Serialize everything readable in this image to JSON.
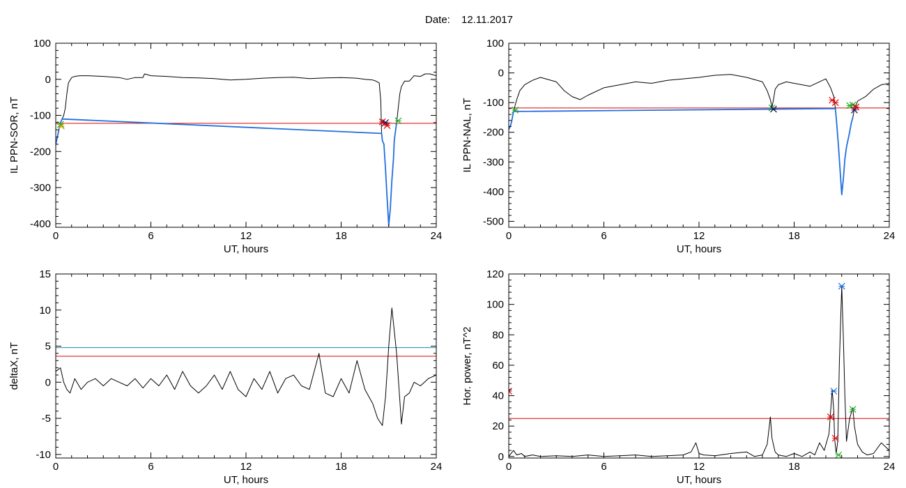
{
  "header": {
    "date_label": "Date:",
    "date_value": "12.11.2017"
  },
  "chart_data": [
    {
      "type": "line",
      "ylabel": "IL PPN-SOR, nT",
      "xlabel": "UT, hours",
      "xlim": [
        0,
        24
      ],
      "ylim": [
        -410,
        100
      ],
      "xticks": [
        "0",
        "6",
        "12",
        "18",
        "24"
      ],
      "xtick_values": [
        0,
        6,
        12,
        18,
        24
      ],
      "yticks": [
        "100",
        "0",
        "-100",
        "-200",
        "-300",
        "-400"
      ],
      "ytick_values": [
        100,
        0,
        -100,
        -200,
        -300,
        -400
      ],
      "thresholds": [
        {
          "value": -122,
          "color": "#e00000"
        }
      ],
      "series": [
        {
          "color": "#000000",
          "x": [
            0,
            0.1,
            0.2,
            0.3,
            0.4,
            0.5,
            0.6,
            0.7,
            0.8,
            1.0,
            1.2,
            1.5,
            2,
            3,
            4,
            4.5,
            5,
            5.5,
            5.6,
            6,
            7,
            8,
            9,
            10,
            11,
            12,
            13,
            14,
            15,
            16,
            17,
            18,
            19,
            19.5,
            20,
            20.2,
            20.4,
            20.5,
            20.55,
            20.6,
            20.7,
            20.8,
            20.9,
            21.0,
            21.1,
            21.2,
            21.3,
            21.35,
            21.5,
            21.6,
            21.7,
            21.8,
            22,
            22.3,
            22.6,
            23,
            23.3,
            23.6,
            24
          ],
          "y": [
            -180,
            -160,
            -140,
            -120,
            -110,
            -100,
            -80,
            -40,
            -10,
            5,
            8,
            10,
            10,
            8,
            5,
            0,
            5,
            5,
            15,
            10,
            8,
            5,
            4,
            2,
            -2,
            0,
            3,
            5,
            6,
            2,
            4,
            5,
            3,
            0,
            -2,
            -5,
            -10,
            -60,
            -150,
            -170,
            -180,
            -250,
            -330,
            -405,
            -360,
            -280,
            -220,
            -170,
            -120,
            -80,
            -40,
            -20,
            -5,
            -5,
            10,
            8,
            15,
            15,
            10
          ]
        },
        {
          "color": "#1f6fe0",
          "x": [
            0,
            0.1,
            0.2,
            0.3,
            0.4,
            20.55,
            20.6,
            20.7,
            20.8,
            20.9,
            21.0,
            21.1,
            21.2,
            21.3,
            21.35,
            21.5
          ],
          "y": [
            -180,
            -160,
            -140,
            -120,
            -110,
            -150,
            -170,
            -180,
            -250,
            -330,
            -405,
            -360,
            -280,
            -220,
            -170,
            -120
          ]
        }
      ],
      "markers": [
        {
          "x": 0.3,
          "y": -125,
          "color": "#20b020"
        },
        {
          "x": 0.35,
          "y": -130,
          "color": "#d0a000"
        },
        {
          "x": 20.6,
          "y": -118,
          "color": "#e00000"
        },
        {
          "x": 20.75,
          "y": -122,
          "color": "#e00000"
        },
        {
          "x": 20.8,
          "y": -120,
          "color": "#101060"
        },
        {
          "x": 20.9,
          "y": -128,
          "color": "#e00000"
        },
        {
          "x": 21.6,
          "y": -115,
          "color": "#20b020"
        }
      ]
    },
    {
      "type": "line",
      "ylabel": "IL PPN-NAL, nT",
      "xlabel": "UT, hours",
      "xlim": [
        0,
        24
      ],
      "ylim": [
        -520,
        100
      ],
      "xticks": [
        "0",
        "6",
        "12",
        "18",
        "24"
      ],
      "xtick_values": [
        0,
        6,
        12,
        18,
        24
      ],
      "yticks": [
        "100",
        "0",
        "-100",
        "-200",
        "-300",
        "-400",
        "-500"
      ],
      "ytick_values": [
        100,
        0,
        -100,
        -200,
        -300,
        -400,
        -500
      ],
      "thresholds": [
        {
          "value": -118,
          "color": "#e00000"
        }
      ],
      "series": [
        {
          "color": "#000000",
          "x": [
            0,
            0.1,
            0.2,
            0.3,
            0.5,
            0.7,
            1.0,
            1.5,
            2,
            3,
            3.5,
            4,
            4.5,
            5,
            6,
            7,
            8,
            9,
            10,
            11,
            12,
            13,
            14,
            15,
            16,
            16.3,
            16.5,
            16.6,
            16.7,
            16.8,
            17,
            17.5,
            18,
            19,
            20,
            20.3,
            20.5,
            20.6,
            20.7,
            20.8,
            20.9,
            21.0,
            21.1,
            21.2,
            21.3,
            21.5,
            21.6,
            21.7,
            21.8,
            21.9,
            22,
            22.5,
            23,
            23.5,
            24
          ],
          "y": [
            -190,
            -180,
            -160,
            -130,
            -90,
            -60,
            -40,
            -25,
            -15,
            -30,
            -60,
            -80,
            -90,
            -75,
            -50,
            -40,
            -30,
            -35,
            -25,
            -20,
            -15,
            -8,
            -5,
            -15,
            -30,
            -60,
            -90,
            -115,
            -90,
            -55,
            -40,
            -30,
            -35,
            -45,
            -20,
            -50,
            -80,
            -120,
            -180,
            -250,
            -330,
            -410,
            -360,
            -290,
            -250,
            -200,
            -170,
            -150,
            -120,
            -110,
            -95,
            -80,
            -55,
            -40,
            -35
          ]
        },
        {
          "color": "#1f6fe0",
          "x": [
            0,
            0.1,
            0.2,
            0.3,
            20.6,
            20.7,
            20.8,
            20.9,
            21.0,
            21.1,
            21.2,
            21.3,
            21.5,
            21.6,
            21.7
          ],
          "y": [
            -190,
            -180,
            -160,
            -130,
            -120,
            -180,
            -250,
            -330,
            -410,
            -360,
            -290,
            -250,
            -200,
            -170,
            -150
          ]
        }
      ],
      "markers": [
        {
          "x": 0.4,
          "y": -125,
          "color": "#20b020"
        },
        {
          "x": 16.6,
          "y": -118,
          "color": "#20b020"
        },
        {
          "x": 16.7,
          "y": -122,
          "color": "#101060"
        },
        {
          "x": 20.4,
          "y": -92,
          "color": "#e00000"
        },
        {
          "x": 20.6,
          "y": -100,
          "color": "#e00000"
        },
        {
          "x": 21.5,
          "y": -110,
          "color": "#20b020"
        },
        {
          "x": 21.7,
          "y": -108,
          "color": "#20b020"
        },
        {
          "x": 21.8,
          "y": -125,
          "color": "#101060"
        },
        {
          "x": 21.9,
          "y": -115,
          "color": "#e00000"
        }
      ]
    },
    {
      "type": "line",
      "ylabel": "deltaX, nT",
      "xlabel": "UT, hours",
      "xlim": [
        0,
        24
      ],
      "ylim": [
        -10.5,
        15
      ],
      "xticks": [
        "0",
        "6",
        "12",
        "18",
        "24"
      ],
      "xtick_values": [
        0,
        6,
        12,
        18,
        24
      ],
      "yticks": [
        "15",
        "10",
        "5",
        "0",
        "-5",
        "-10"
      ],
      "ytick_values": [
        15,
        10,
        5,
        0,
        -5,
        -10
      ],
      "thresholds": [
        {
          "value": 4.8,
          "color": "#1a8fb0"
        },
        {
          "value": 3.6,
          "color": "#e00000"
        }
      ],
      "series": [
        {
          "color": "#000000",
          "x": [
            0,
            0.3,
            0.5,
            0.7,
            0.9,
            1.2,
            1.6,
            2,
            2.5,
            3,
            3.5,
            4,
            4.5,
            5,
            5.5,
            6,
            6.5,
            7,
            7.5,
            8,
            8.5,
            9,
            9.5,
            10,
            10.5,
            11,
            11.5,
            12,
            12.5,
            13,
            13.5,
            14,
            14.5,
            15,
            15.5,
            16,
            16.3,
            16.6,
            17,
            17.5,
            18,
            18.5,
            19,
            19.5,
            20,
            20.3,
            20.6,
            20.8,
            21.0,
            21.2,
            21.5,
            21.8,
            22,
            22.3,
            22.6,
            23,
            23.5,
            24
          ],
          "y": [
            1.5,
            2,
            0,
            -1,
            -1.5,
            0.5,
            -1,
            0,
            0.5,
            -0.5,
            0.5,
            0,
            -0.5,
            0.5,
            -0.8,
            0.5,
            -0.5,
            1,
            -1,
            1.5,
            -0.5,
            -1.5,
            -0.5,
            1,
            -1,
            1.5,
            -1,
            -2,
            0.5,
            -1,
            1.5,
            -1.5,
            0.5,
            1,
            -0.5,
            -1,
            1.5,
            4,
            -1.5,
            -2,
            0.5,
            -1.5,
            3,
            -1,
            -3,
            -5,
            -6,
            -2,
            5,
            10.3,
            4,
            -5.8,
            -2,
            -1.5,
            0,
            -0.5,
            0.5,
            1
          ]
        }
      ],
      "markers": []
    },
    {
      "type": "line",
      "ylabel": "Hor. power, nT^2",
      "xlabel": "UT, hours",
      "xlim": [
        0,
        24
      ],
      "ylim": [
        -1,
        120
      ],
      "xticks": [
        "0",
        "6",
        "12",
        "18",
        "24"
      ],
      "xtick_values": [
        0,
        6,
        12,
        18,
        24
      ],
      "yticks": [
        "120",
        "100",
        "80",
        "60",
        "40",
        "20",
        "0"
      ],
      "ytick_values": [
        120,
        100,
        80,
        60,
        40,
        20,
        0
      ],
      "thresholds": [
        {
          "value": 25,
          "color": "#e00000"
        }
      ],
      "series": [
        {
          "color": "#000000",
          "x": [
            0,
            0.3,
            0.5,
            0.8,
            1,
            1.5,
            2,
            3,
            4,
            5,
            6,
            7,
            8,
            9,
            10,
            11,
            11.5,
            11.8,
            12,
            12.3,
            13,
            14,
            15,
            15.5,
            16,
            16.3,
            16.5,
            16.6,
            16.8,
            17,
            17.5,
            18,
            18.5,
            19,
            19.3,
            19.6,
            19.9,
            20.2,
            20.4,
            20.5,
            20.55,
            20.65,
            20.75,
            20.85,
            20.95,
            21.0,
            21.1,
            21.2,
            21.3,
            21.5,
            21.7,
            21.8,
            22,
            22.3,
            22.6,
            23,
            23.5,
            24
          ],
          "y": [
            0,
            4,
            1,
            2,
            0,
            1,
            0,
            0.5,
            0,
            1,
            0,
            0.5,
            1,
            0,
            0.5,
            1,
            3,
            9,
            2,
            1,
            0.5,
            2,
            3,
            0,
            1,
            8,
            26,
            12,
            3,
            1,
            0,
            2,
            0,
            3,
            1,
            9,
            4,
            15,
            44,
            30,
            12,
            2,
            10,
            60,
            95,
            112,
            80,
            40,
            10,
            25,
            32,
            20,
            8,
            3,
            1,
            2,
            9,
            4
          ]
        }
      ],
      "markers": [
        {
          "x": 0,
          "y": 43,
          "color": "#e00000"
        },
        {
          "x": 20.3,
          "y": 26,
          "color": "#e00000"
        },
        {
          "x": 20.5,
          "y": 43,
          "color": "#1f6fe0"
        },
        {
          "x": 20.6,
          "y": 12,
          "color": "#e00000"
        },
        {
          "x": 20.8,
          "y": 1,
          "color": "#20b020"
        },
        {
          "x": 21.0,
          "y": 112,
          "color": "#1f6fe0"
        },
        {
          "x": 21.7,
          "y": 31,
          "color": "#20b020"
        }
      ]
    }
  ]
}
